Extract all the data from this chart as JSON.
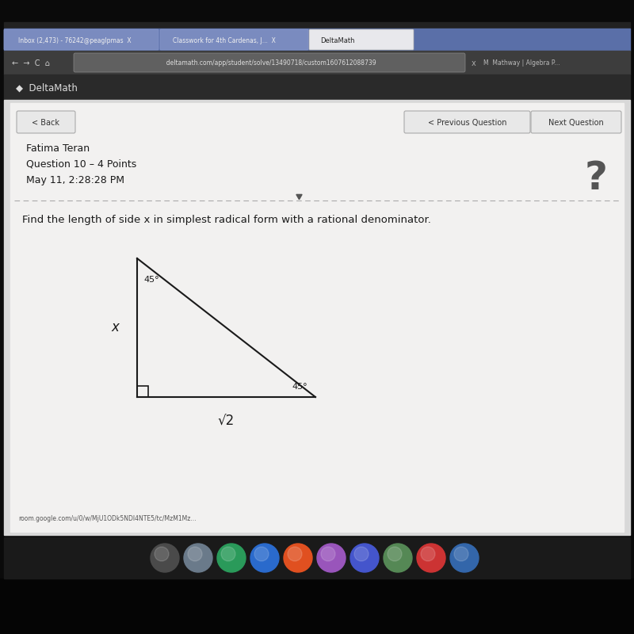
{
  "bg_outer": "#0a0a0a",
  "browser_url": "deltamath.com/app/student/solve/13490718/custom1607612088739",
  "student_name": "Fatima Teran",
  "question_info": "Question 10 – 4 Points",
  "date_info": "May 11, 2:28:28 PM",
  "question_text": "Find the length of side x in simplest radical form with a rational denominator.",
  "angle_top": "45°",
  "angle_bottom_right": "45°",
  "label_left": "x",
  "label_bottom": "√2",
  "triangle_color": "#1a1a1a",
  "text_color": "#1a1a1a",
  "chrome_blue": "#5a6fa8",
  "chrome_dark": "#2a2a2a",
  "tab_bg": "#d8dae0",
  "active_tab_bg": "#f0f0f0",
  "content_bg": "#e0e0e0",
  "panel_bg": "#f0efee",
  "header_bar": "#333333",
  "dock_colors": [
    "#4a4a4a",
    "#6a7a8a",
    "#2a9a5a",
    "#2a6acc",
    "#e05020",
    "#9955bb",
    "#4455cc",
    "#558855",
    "#cc3333",
    "#3366aa"
  ]
}
